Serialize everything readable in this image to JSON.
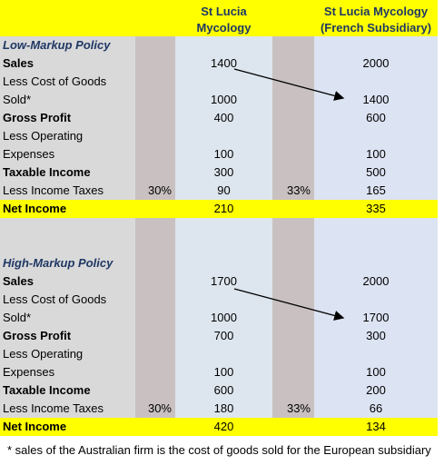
{
  "header": {
    "col_parent": "St Lucia Mycology",
    "col_subsidiary": "St Lucia Mycology (French Subsidiary)"
  },
  "sections": [
    {
      "title": "Low-Markup Policy",
      "rows": [
        {
          "label": "Sales",
          "parent": "1400",
          "sub": "2000"
        },
        {
          "label": "Less Cost of Goods Sold*",
          "parent": "1000",
          "sub": "1400"
        },
        {
          "label": "Gross Profit",
          "parent": "400",
          "sub": "600"
        },
        {
          "label": "Less Operating Expenses",
          "parent": "100",
          "sub": "100"
        },
        {
          "label": "Taxable Income",
          "parent": "300",
          "sub": "500"
        },
        {
          "label": "Less Income Taxes",
          "parent_rate": "30%",
          "parent": "90",
          "sub_rate": "33%",
          "sub": "165"
        },
        {
          "label": "Net Income",
          "parent": "210",
          "sub": "335"
        }
      ]
    },
    {
      "title": "High-Markup Policy",
      "rows": [
        {
          "label": "Sales",
          "parent": "1700",
          "sub": "2000"
        },
        {
          "label": "Less Cost of Goods Sold*",
          "parent": "1000",
          "sub": "1700"
        },
        {
          "label": "Gross Profit",
          "parent": "700",
          "sub": "300"
        },
        {
          "label": "Less Operating Expenses",
          "parent": "100",
          "sub": "100"
        },
        {
          "label": "Taxable Income",
          "parent": "600",
          "sub": "200"
        },
        {
          "label": "Less Income Taxes",
          "parent_rate": "30%",
          "parent": "180",
          "sub_rate": "33%",
          "sub": "66"
        },
        {
          "label": "Net Income",
          "parent": "420",
          "sub": "134"
        }
      ]
    }
  ],
  "footnote": "* sales of the Australian firm is the cost of goods sold for the European subsidiary"
}
